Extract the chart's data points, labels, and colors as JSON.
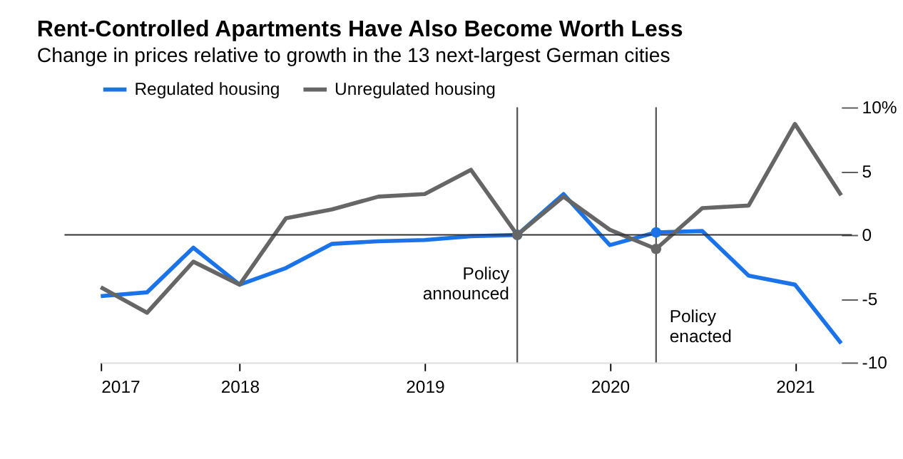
{
  "chart_data": {
    "type": "line",
    "title": "Rent-Controlled Apartments Have Also Become Worth Less",
    "subtitle": "Change in prices relative to growth in the 13 next-largest German cities",
    "x": [
      2017.25,
      2017.5,
      2017.75,
      2018,
      2018.25,
      2018.5,
      2018.75,
      2019,
      2019.25,
      2019.5,
      2019.75,
      2020,
      2020.25,
      2020.5,
      2020.75,
      2021,
      2021.25
    ],
    "series": [
      {
        "name": "Regulated housing",
        "color": "#1a73e8",
        "values": [
          -4.8,
          -4.5,
          -1.0,
          -3.9,
          -2.6,
          -0.7,
          -0.5,
          -0.4,
          -0.1,
          0,
          3.2,
          -0.8,
          0.2,
          0.3,
          -3.2,
          -3.9,
          -8.5
        ]
      },
      {
        "name": "Unregulated housing",
        "color": "#666666",
        "values": [
          -4.1,
          -6.1,
          -2.1,
          -3.9,
          1.3,
          2.0,
          3.0,
          3.2,
          5.1,
          0,
          3.0,
          0.4,
          -1.1,
          2.1,
          2.3,
          8.7,
          3.1
        ]
      },
      {
        "type": "scatter",
        "color": "#1a73e8",
        "marker": "circle",
        "values": [
          null,
          null,
          null,
          null,
          null,
          null,
          null,
          null,
          null,
          0,
          null,
          null,
          0.2,
          null,
          null,
          null,
          null
        ]
      },
      {
        "type": "scatter",
        "color": "#666666",
        "marker": "circle",
        "values": [
          null,
          null,
          null,
          null,
          null,
          null,
          null,
          null,
          null,
          0,
          null,
          null,
          -1.1,
          null,
          null,
          null,
          null
        ]
      }
    ],
    "xlim": [
      2017.25,
      2021.25
    ],
    "xticks": [
      {
        "value": 2017.25,
        "label": "2017"
      },
      2018,
      2019,
      2020,
      2021
    ],
    "ylim": [
      -10,
      10
    ],
    "yticks": [
      {
        "value": 10,
        "label": "10%"
      },
      5,
      0,
      -5,
      -10
    ],
    "ref_lines": [
      {
        "axis": "y",
        "value": 0,
        "label": null,
        "color": "#333333"
      },
      {
        "axis": "x",
        "value": 2019.5,
        "label": "Policy announced",
        "color": "#555555"
      },
      {
        "axis": "x",
        "value": 2020.25,
        "label": "Policy enacted",
        "color": "#555555"
      }
    ],
    "grid": false,
    "legend": "top left",
    "marker": "none",
    "line_style": "solid"
  }
}
